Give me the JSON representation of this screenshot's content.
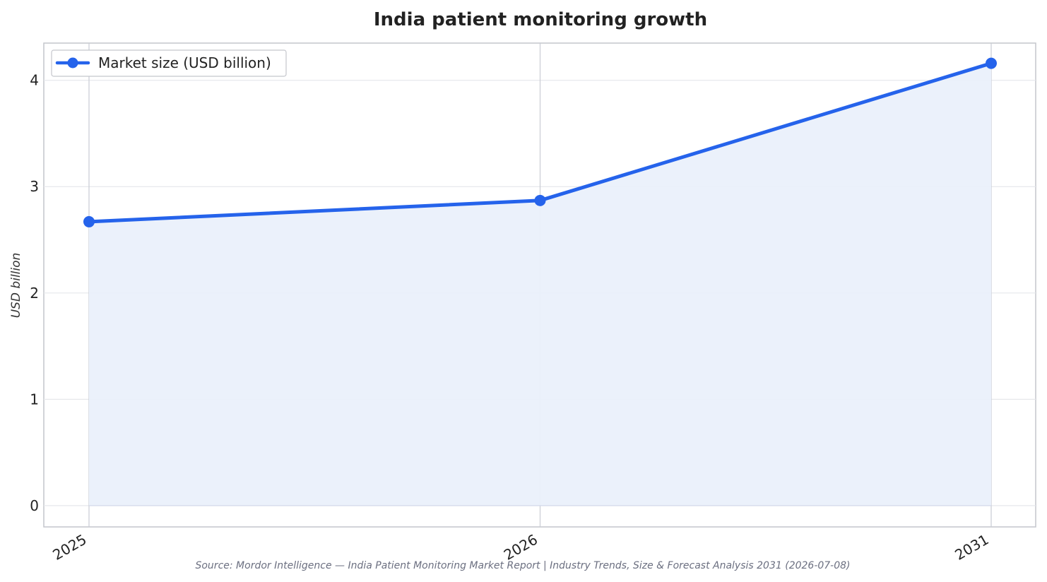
{
  "chart_data": {
    "type": "line",
    "title": "India patient monitoring growth",
    "ylabel": "USD billion",
    "xlabel": "",
    "categories": [
      "2025",
      "2026",
      "2031"
    ],
    "series": [
      {
        "name": "Market size (USD billion)",
        "values": [
          2.67,
          2.87,
          4.16
        ]
      }
    ],
    "ylim": [
      -0.2,
      4.35
    ],
    "yticks": [
      0,
      1,
      2,
      3,
      4
    ],
    "grid": true,
    "area_fill": true,
    "legend_position": "top-left",
    "colors": {
      "line": "#2563eb",
      "fill": "#eaf0fb",
      "grid": "#e6e7eb",
      "frame": "#c4c6cc"
    }
  },
  "footer": {
    "source": "Source: Mordor Intelligence — India Patient Monitoring Market Report | Industry Trends, Size & Forecast Analysis 2031 (2026-07-08)"
  }
}
